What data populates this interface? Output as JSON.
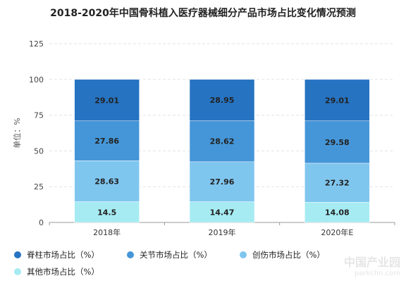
{
  "title": "2018-2020年中国骨科植入医疗器械细分产品市场占比变化情况预测",
  "chart_data": {
    "type": "bar",
    "stacked": true,
    "title": "2018-2020年中国骨科植入医疗器械细分产品市场占比变化情况预测",
    "xlabel": "",
    "ylabel": "单位：%",
    "ylim": [
      0,
      125
    ],
    "yticks": [
      "0",
      "25",
      "50",
      "75",
      "100",
      "125"
    ],
    "grid": true,
    "legend_position": "bottom",
    "categories": [
      "2018年",
      "2019年",
      "2020年E"
    ],
    "series": [
      {
        "name": "其他市场占比（%）",
        "values": [
          14.5,
          14.47,
          14.08
        ],
        "labels": [
          "14.5",
          "14.47",
          "14.08"
        ],
        "color": "#a6ebf2"
      },
      {
        "name": "创伤市场占比（%）",
        "values": [
          28.63,
          27.96,
          27.32
        ],
        "labels": [
          "28.63",
          "27.96",
          "27.32"
        ],
        "color": "#7fc6ef"
      },
      {
        "name": "关节市场占比（%）",
        "values": [
          27.86,
          28.62,
          29.58
        ],
        "labels": [
          "27.86",
          "28.62",
          "29.58"
        ],
        "color": "#4596d8"
      },
      {
        "name": "脊柱市场占比（%）",
        "values": [
          29.01,
          28.95,
          29.01
        ],
        "labels": [
          "29.01",
          "28.95",
          "29.01"
        ],
        "color": "#2673c2"
      }
    ]
  },
  "legend": [
    {
      "label": "脊柱市场占比（%）",
      "color": "#2673c2"
    },
    {
      "label": "关节市场占比（%）",
      "color": "#4596d8"
    },
    {
      "label": "创伤市场占比（%）",
      "color": "#7fc6ef"
    },
    {
      "label": "其他市场占比（%）",
      "color": "#a6ebf2"
    }
  ],
  "watermark": {
    "cn": "中国产业园",
    "en": "parkchn.com"
  }
}
